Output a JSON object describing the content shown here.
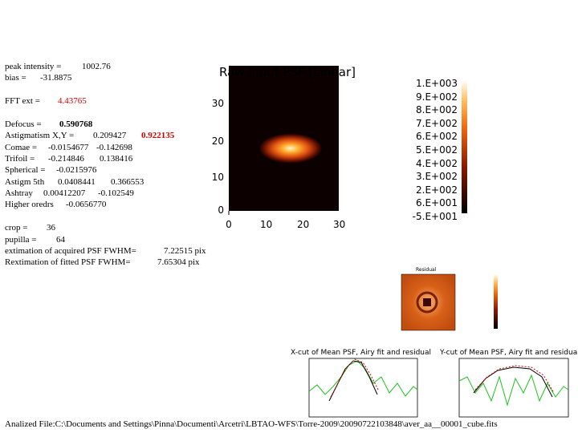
{
  "summary": {
    "peak_intensity": {
      "label": "peak intensity =",
      "value": "1002.76"
    },
    "bias": {
      "label": "bias =",
      "value": "-31.8875"
    },
    "fft_ext": {
      "label": "FFT ext =",
      "value": "4.43765"
    }
  },
  "aberrations": [
    {
      "label": "Defocus =",
      "values": [
        "0.590768"
      ]
    },
    {
      "label": "Astigmatism X,Y =",
      "values": [
        "0.209427",
        "0.922135"
      ]
    },
    {
      "label": "Comae =",
      "values": [
        "-0.0154677",
        "-0.142698"
      ]
    },
    {
      "label": "Trifoil =",
      "values": [
        "-0.214846",
        "0.138416"
      ]
    },
    {
      "label": "Spherical =",
      "values": [
        "-0.0215976"
      ]
    },
    {
      "label": "Astigm 5th",
      "values": [
        "0.0408441",
        "0.366553"
      ]
    },
    {
      "label": "Ashtray",
      "values": [
        "0.00412207",
        "-0.102549"
      ]
    },
    {
      "label": "Higher oredrs",
      "values": [
        "-0.0656770"
      ]
    }
  ],
  "settings": [
    {
      "label": "crop =",
      "value": "36"
    },
    {
      "label": "pupilla =",
      "value": "64"
    },
    {
      "label": "extimation of acquired PSF FWHM=",
      "value": "7.22515 pix"
    },
    {
      "label": "Rextimation of fitted PSF FWHM=",
      "value": "7.65304 pix"
    }
  ],
  "psf_image": {
    "title": "Raw input PSF [Linear]",
    "x_ticks": [
      "0",
      "10",
      "20",
      "30"
    ],
    "y_ticks": [
      "0",
      "10",
      "20",
      "30"
    ],
    "colorbar_labels": [
      "1.E+003",
      "9.E+002",
      "8.E+002",
      "7.E+002",
      "6.E+002",
      "5.E+002",
      "4.E+002",
      "3.E+002",
      "2.E+002",
      "6.E+001",
      "-5.E+001"
    ]
  },
  "residual": {
    "title": "Residual"
  },
  "x_cut": {
    "title": "X-cut of Mean PSF, Airy fit and residual"
  },
  "y_cut": {
    "title": "Y-cut of Mean PSF, Airy fit and residual"
  },
  "footer": "Analized File:C:\\Documents and Settings\\Pinna\\Documenti\\Arcetri\\LBTAO-WFS\\Torre-2009\\20090722103848\\aver_aa__00001_cube.fits"
}
